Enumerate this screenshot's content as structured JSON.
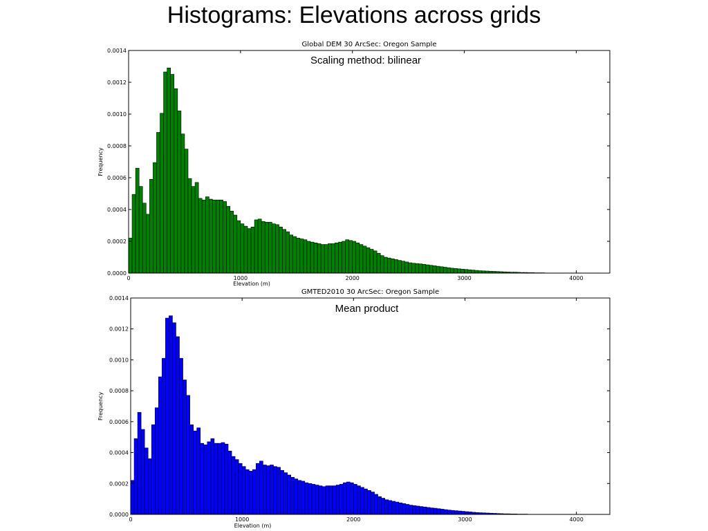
{
  "slide": {
    "title": "Histograms: Elevations across grids"
  },
  "chart_data": [
    {
      "type": "bar",
      "title": "Global DEM 30 ArcSec: Oregon Sample",
      "annotation": "Scaling method: bilinear",
      "xlabel": "Elevation (m)",
      "ylabel": "Frequency",
      "color": "#008000",
      "xlim": [
        0,
        4300
      ],
      "ylim": [
        0,
        0.0014
      ],
      "xticks": [
        0,
        1000,
        2000,
        3000,
        4000
      ],
      "xtick_labels": [
        "0",
        "1000",
        "2000",
        "3000",
        "4000"
      ],
      "yticks": [
        0,
        0.0002,
        0.0004,
        0.0006,
        0.0008,
        0.001,
        0.0012,
        0.0014
      ],
      "ytick_labels": [
        "0.0000",
        "0.0002",
        "0.0004",
        "0.0006",
        "0.0008",
        "0.0010",
        "0.0012",
        "0.0014"
      ],
      "grid": false,
      "bin_start": 0,
      "bin_width": 31.25,
      "values": [
        0.00022,
        0.000495,
        0.00066,
        0.000545,
        0.00044,
        0.00037,
        0.00059,
        0.000695,
        0.000885,
        0.001005,
        0.001265,
        0.00129,
        0.00125,
        0.00116,
        0.00102,
        0.000875,
        0.00078,
        0.000595,
        0.000545,
        0.00057,
        0.00047,
        0.00046,
        0.00048,
        0.000465,
        0.00046,
        0.00046,
        0.00046,
        0.00045,
        0.00042,
        0.00039,
        0.000365,
        0.00033,
        0.00031,
        0.000295,
        0.00028,
        0.00029,
        0.000335,
        0.00034,
        0.000325,
        0.00032,
        0.00032,
        0.00031,
        0.000305,
        0.00029,
        0.000275,
        0.00026,
        0.00024,
        0.00023,
        0.00022,
        0.000215,
        0.00021,
        0.0002,
        0.000195,
        0.00019,
        0.000185,
        0.00018,
        0.00018,
        0.000185,
        0.000185,
        0.00019,
        0.000195,
        0.0002,
        0.00021,
        0.000205,
        0.0002,
        0.00019,
        0.00018,
        0.00017,
        0.00016,
        0.00015,
        0.00014,
        0.000125,
        0.00011,
        0.0001,
        9.5e-05,
        9e-05,
        8.5e-05,
        8e-05,
        7.5e-05,
        7e-05,
        6.5e-05,
        6.2e-05,
        6e-05,
        5.8e-05,
        5.5e-05,
        5.2e-05,
        4.9e-05,
        4.6e-05,
        4.3e-05,
        4e-05,
        3.7e-05,
        3.4e-05,
        3.1e-05,
        2.9e-05,
        2.7e-05,
        2.5e-05,
        2.3e-05,
        2.1e-05,
        1.9e-05,
        1.7e-05,
        1.5e-05,
        1.4e-05,
        1.3e-05,
        1.2e-05,
        1.1e-05,
        1e-05,
        9e-06,
        8e-06,
        7e-06,
        6e-06,
        6e-06,
        5e-06,
        4e-06,
        4e-06,
        3e-06,
        3e-06,
        2e-06,
        2e-06,
        2e-06,
        1e-06,
        1e-06,
        1e-06,
        1e-06,
        1e-06,
        1e-06,
        1e-06,
        1e-06,
        1e-06,
        1e-06,
        1e-06,
        1e-06,
        1e-06,
        1e-06,
        1e-06,
        1e-06
      ]
    },
    {
      "type": "bar",
      "title": "GMTED2010 30 ArcSec: Oregon Sample",
      "annotation": "Mean product",
      "xlabel": "Elevation (m)",
      "ylabel": "Frequency",
      "color": "#0000ff",
      "xlim": [
        0,
        4300
      ],
      "ylim": [
        0,
        0.0014
      ],
      "xticks": [
        0,
        1000,
        2000,
        3000,
        4000
      ],
      "xtick_labels": [
        "0",
        "1000",
        "2000",
        "3000",
        "4000"
      ],
      "yticks": [
        0,
        0.0002,
        0.0004,
        0.0006,
        0.0008,
        0.001,
        0.0012,
        0.0014
      ],
      "ytick_labels": [
        "0.0000",
        "0.0002",
        "0.0004",
        "0.0006",
        "0.0008",
        "0.0010",
        "0.0012",
        "0.0014"
      ],
      "grid": false,
      "bin_start": 0,
      "bin_width": 31.25,
      "values": [
        0.00022,
        0.00049,
        0.00066,
        0.00055,
        0.00043,
        0.00036,
        0.00058,
        0.00069,
        0.00089,
        0.00101,
        0.00127,
        0.001285,
        0.00124,
        0.00115,
        0.00101,
        0.00087,
        0.00077,
        0.00058,
        0.00054,
        0.00056,
        0.00046,
        0.00045,
        0.00047,
        0.00049,
        0.00046,
        0.00046,
        0.000465,
        0.000455,
        0.00041,
        0.000375,
        0.000355,
        0.00033,
        0.00031,
        0.00029,
        0.00028,
        0.00029,
        0.00033,
        0.000345,
        0.00032,
        0.000315,
        0.00032,
        0.00031,
        0.000305,
        0.000285,
        0.00027,
        0.000255,
        0.00024,
        0.00023,
        0.00022,
        0.000215,
        0.000205,
        0.0002,
        0.000195,
        0.00019,
        0.000185,
        0.00018,
        0.000185,
        0.000185,
        0.000185,
        0.00019,
        0.000195,
        0.000205,
        0.00021,
        0.000205,
        0.000195,
        0.000185,
        0.000175,
        0.000165,
        0.000155,
        0.000145,
        0.00013,
        0.000115,
        0.000105,
        9.5e-05,
        9e-05,
        8.5e-05,
        8e-05,
        7.5e-05,
        7e-05,
        6.5e-05,
        6e-05,
        5.7e-05,
        5.4e-05,
        5.1e-05,
        4.8e-05,
        4.5e-05,
        4.2e-05,
        4e-05,
        3.7e-05,
        3.4e-05,
        3.1e-05,
        2.8e-05,
        2.6e-05,
        2.4e-05,
        2.2e-05,
        2e-05,
        1.8e-05,
        1.6e-05,
        1.4e-05,
        1.2e-05,
        1.1e-05,
        1e-05,
        9e-06,
        8e-06,
        7e-06,
        6e-06,
        5e-06,
        4e-06,
        4e-06,
        3e-06,
        3e-06,
        2e-06,
        2e-06,
        2e-06,
        1e-06,
        1e-06,
        1e-06,
        1e-06,
        1e-06,
        1e-06,
        1e-06,
        1e-06,
        1e-06,
        1e-06,
        1e-06,
        1e-06,
        1e-06,
        1e-06,
        1e-06,
        1e-06,
        1e-06,
        1e-06,
        1e-06,
        1e-06,
        1e-06,
        1e-06
      ]
    }
  ]
}
